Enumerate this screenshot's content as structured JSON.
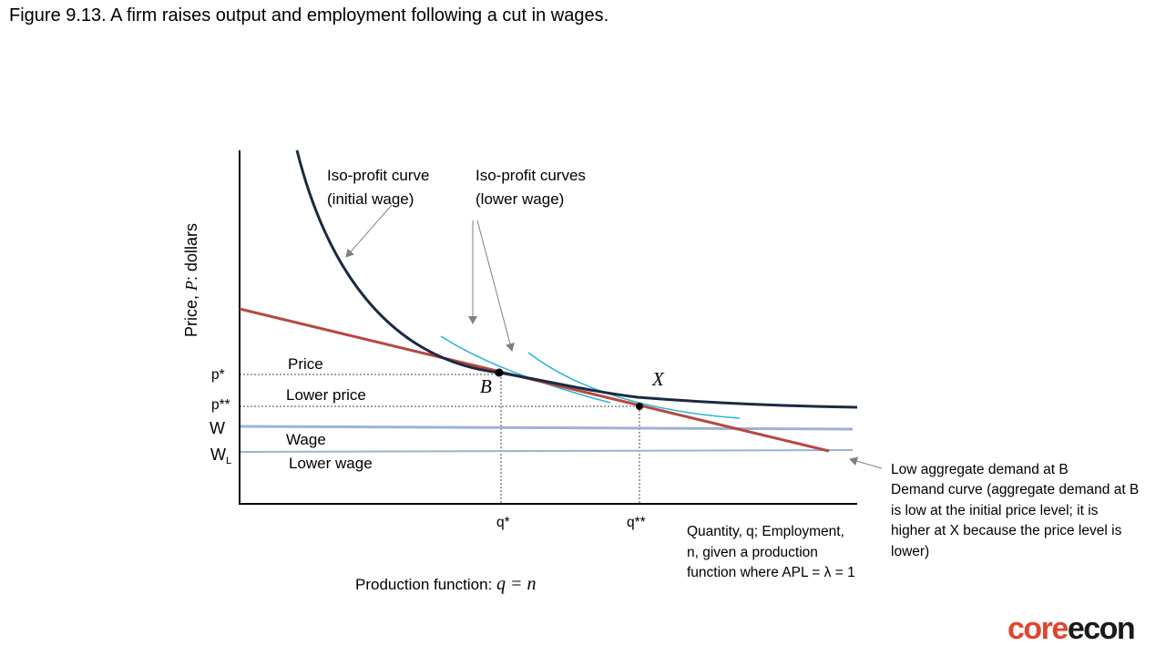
{
  "figure": {
    "title": "Figure 9.13. A firm raises output and employment following a cut in wages."
  },
  "axes": {
    "y_label_prefix": "Price, ",
    "y_label_var": "P",
    "y_label_suffix": ": dollars",
    "x_label_lines": [
      "Quantity, q; Employment,",
      "n, given a production",
      "function where APL = λ = 1"
    ]
  },
  "ticks": {
    "p_star": "p*",
    "p_double_star": "p**",
    "w": "W",
    "w_low_base": "W",
    "w_low_sub": "L",
    "q_star": "q*",
    "q_double_star": "q**"
  },
  "labels": {
    "iso_initial_1": "Iso-profit curve",
    "iso_initial_2": "(initial wage)",
    "iso_lower_1": "Iso-profit curves",
    "iso_lower_2": "(lower wage)",
    "price": "Price",
    "lower_price": "Lower price",
    "wage": "Wage",
    "lower_wage": "Lower wage",
    "point_b": "B",
    "point_x": "X",
    "demand_lines": [
      "Low aggregate demand at B",
      "Demand curve (aggregate demand at B",
      "is low at the initial price level; it is",
      "higher at X because the price level is",
      "lower)"
    ],
    "production_prefix": "Production function: ",
    "production_eq": "q = n"
  },
  "colors": {
    "iso_initial": "#1b2a41",
    "iso_lower": "#2bb3d6",
    "demand": "#b5493f",
    "wage_lines": "#9bb3d4",
    "axis": "#000000",
    "arrow": "#808080"
  },
  "logo": {
    "core": "core",
    "econ": "econ"
  }
}
